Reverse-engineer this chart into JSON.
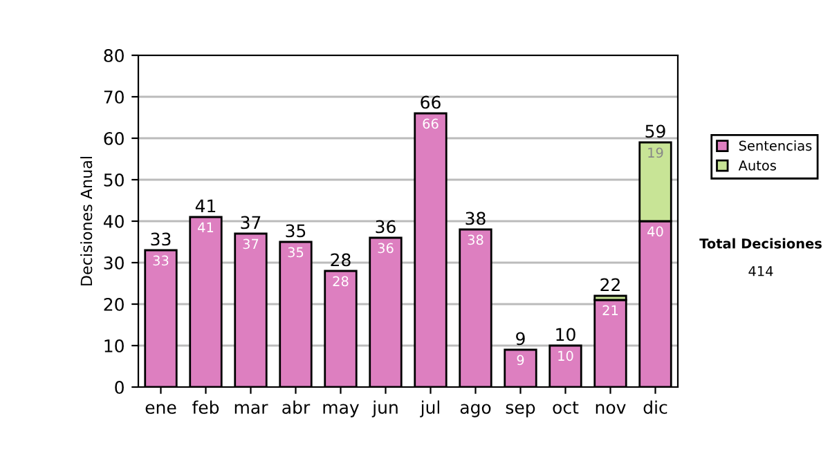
{
  "chart_data": {
    "type": "bar",
    "stacked": true,
    "ylabel": "Decisiones Anual",
    "categories": [
      "ene",
      "feb",
      "mar",
      "abr",
      "may",
      "jun",
      "jul",
      "ago",
      "sep",
      "oct",
      "nov",
      "dic"
    ],
    "series": [
      {
        "name": "Sentencias",
        "color": "#dd7fc0",
        "values": [
          33,
          41,
          37,
          35,
          28,
          36,
          66,
          38,
          9,
          10,
          21,
          40
        ],
        "value_labels": [
          "33",
          "41",
          "37",
          "35",
          "28",
          "36",
          "66",
          "38",
          "9",
          "10",
          "21",
          "40"
        ]
      },
      {
        "name": "Autos",
        "color": "#c8e496",
        "values": [
          null,
          null,
          null,
          null,
          null,
          null,
          null,
          null,
          null,
          null,
          1,
          19
        ],
        "value_labels": [
          null,
          null,
          null,
          null,
          null,
          null,
          null,
          null,
          null,
          null,
          null,
          "19"
        ]
      }
    ],
    "totals": [
      "33",
      "41",
      "37",
      "35",
      "28",
      "36",
      "66",
      "38",
      "9",
      "10",
      "22",
      "59"
    ],
    "ylim": [
      0,
      80
    ],
    "yticks": [
      0,
      10,
      20,
      30,
      40,
      50,
      60,
      70,
      80
    ],
    "grid": "y",
    "legend": "right",
    "annotations": [
      "Total Decisiones",
      "414"
    ]
  }
}
